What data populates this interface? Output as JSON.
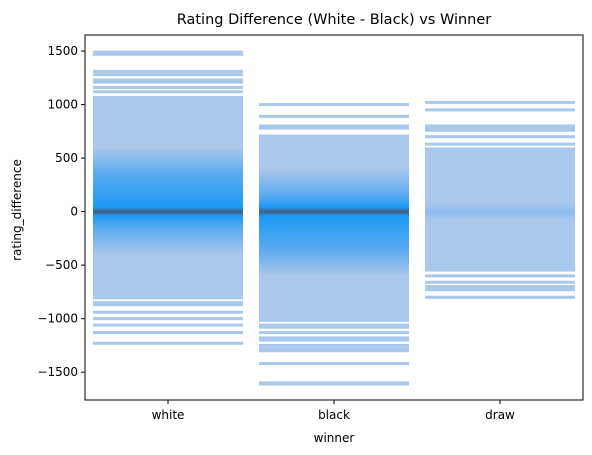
{
  "chart_data": {
    "type": "heatmap",
    "title": "Rating Difference (White - Black) vs Winner",
    "xlabel": "winner",
    "ylabel": "rating_difference",
    "categories": [
      "white",
      "black",
      "draw"
    ],
    "ylim": [
      -1760,
      1650
    ],
    "yticks": [
      -1500,
      -1000,
      -500,
      0,
      500,
      1000,
      1500
    ],
    "ytick_labels": [
      "−1500",
      "−1000",
      "−500",
      "0",
      "500",
      "1000",
      "1500"
    ],
    "grid": false,
    "colors": {
      "base": "#a9c8ec",
      "mid": "#5aaaf0",
      "high": "#1a9af5",
      "peak": "#3f6288"
    },
    "series": [
      {
        "category": "white",
        "main_range": [
          -820,
          1080
        ],
        "core_range": [
          -150,
          350
        ],
        "peak": 0,
        "outlier_bins": [
          1490,
          1470,
          1310,
          1280,
          1230,
          1210,
          1160,
          1120,
          -850,
          -870,
          -940,
          -1000,
          -1060,
          -1130,
          -1230
        ]
      },
      {
        "category": "black",
        "main_range": [
          -1030,
          720
        ],
        "core_range": [
          -350,
          150
        ],
        "peak": 0,
        "outlier_bins": [
          1000,
          890,
          800,
          780,
          -1060,
          -1080,
          -1130,
          -1180,
          -1200,
          -1250,
          -1280,
          -1300,
          -1420,
          -1600,
          -1610
        ]
      },
      {
        "category": "draw",
        "main_range": [
          -560,
          600
        ],
        "core_range": [
          -60,
          60
        ],
        "peak": 0,
        "outlier_bins": [
          1020,
          950,
          800,
          780,
          760,
          700,
          630,
          -600,
          -660,
          -700,
          -720,
          -730,
          -800
        ]
      }
    ]
  }
}
